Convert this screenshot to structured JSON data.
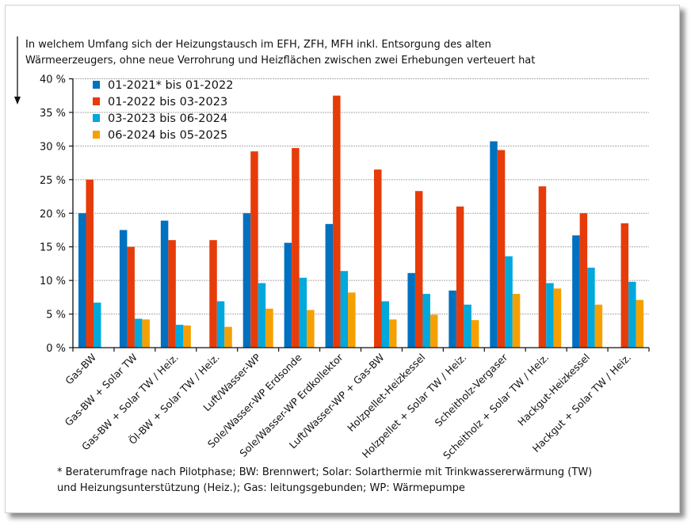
{
  "chart_data": {
    "type": "bar",
    "title_lines": [
      "In welchem Umfang sich der Heizungstausch im EFH, ZFH, MFH inkl. Entsorgung des alten",
      "Wärmeerzeugers, ohne neue Verrohrung und Heizflächen zwischen zwei Erhebungen verteuert hat"
    ],
    "ylim": [
      0,
      40
    ],
    "yticks": [
      "0 %",
      "5 %",
      "10 %",
      "15 %",
      "20 %",
      "25 %",
      "30 %",
      "35 %",
      "40 %"
    ],
    "grid": true,
    "legend_placement": "top-left",
    "categories": [
      "Gas-BW",
      "Gas-BW + Solar TW",
      "Gas-BW + Solar TW / Heiz.",
      "Öl-BW + Solar TW / Heiz.",
      "Luft/Wasser-WP",
      "Sole/Wasser-WP Erdsonde",
      "Sole/Wasser-WP Erdkollektor",
      "Luft/Wasser-WP + Gas-BW",
      "Holzpellet-Heizkessel",
      "Holzpellet + Solar TW / Heiz.",
      "Scheitholz-Vergaser",
      "Scheitholz + Solar TW / Heiz.",
      "Hackgut-Heizkessel",
      "Hackgut + Solar TW / Heiz."
    ],
    "series": [
      {
        "name": "01-2021* bis 01-2022",
        "color": "#0070C0",
        "values": [
          20.0,
          17.5,
          18.9,
          null,
          20.0,
          15.6,
          18.4,
          null,
          11.1,
          8.5,
          30.7,
          null,
          16.7,
          null
        ]
      },
      {
        "name": "01-2022 bis 03-2023",
        "color": "#E63C0A",
        "values": [
          25.0,
          15.0,
          16.0,
          16.0,
          29.2,
          29.7,
          37.5,
          26.5,
          23.3,
          21.0,
          29.4,
          24.0,
          20.0,
          18.5
        ]
      },
      {
        "name": "03-2023 bis 06-2024",
        "color": "#00A8DC",
        "values": [
          6.7,
          4.3,
          3.4,
          6.9,
          9.6,
          10.4,
          11.4,
          6.9,
          8.0,
          6.4,
          13.6,
          9.6,
          11.9,
          9.8
        ]
      },
      {
        "name": "06-2024 bis 05-2025",
        "color": "#F5A000",
        "values": [
          null,
          4.2,
          3.3,
          3.1,
          5.8,
          5.6,
          8.2,
          4.2,
          4.9,
          4.1,
          8.0,
          8.8,
          6.4,
          7.1
        ]
      }
    ],
    "footnote_lines": [
      "* Beraterumfrage nach Pilotphase; BW: Brennwert; Solar: Solarthermie mit Trinkwassererwärmung (TW)",
      "und Heizungsunterstützung (Heiz.); Gas: leitungsgebunden; WP: Wärmepumpe"
    ]
  }
}
